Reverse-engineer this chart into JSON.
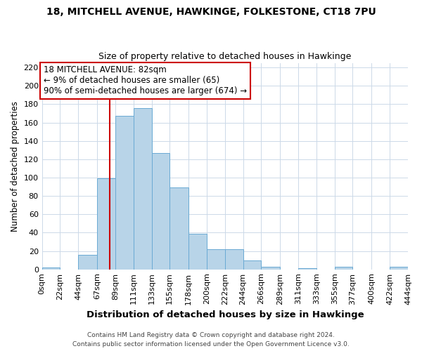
{
  "title": "18, MITCHELL AVENUE, HAWKINGE, FOLKESTONE, CT18 7PU",
  "subtitle": "Size of property relative to detached houses in Hawkinge",
  "xlabel": "Distribution of detached houses by size in Hawkinge",
  "ylabel": "Number of detached properties",
  "bin_edges": [
    0,
    22,
    44,
    67,
    89,
    111,
    133,
    155,
    178,
    200,
    222,
    244,
    266,
    289,
    311,
    333,
    355,
    377,
    400,
    422,
    444
  ],
  "bin_labels": [
    "0sqm",
    "22sqm",
    "44sqm",
    "67sqm",
    "89sqm",
    "111sqm",
    "133sqm",
    "155sqm",
    "178sqm",
    "200sqm",
    "222sqm",
    "244sqm",
    "266sqm",
    "289sqm",
    "311sqm",
    "333sqm",
    "355sqm",
    "377sqm",
    "400sqm",
    "422sqm",
    "444sqm"
  ],
  "bar_heights": [
    2,
    0,
    16,
    99,
    167,
    176,
    127,
    89,
    39,
    22,
    22,
    10,
    3,
    0,
    1,
    0,
    3,
    0,
    0,
    3
  ],
  "bar_color": "#b8d4e8",
  "bar_edge_color": "#6aaad4",
  "property_line_x": 82,
  "ylim": [
    0,
    225
  ],
  "yticks": [
    0,
    20,
    40,
    60,
    80,
    100,
    120,
    140,
    160,
    180,
    200,
    220
  ],
  "annotation_title": "18 MITCHELL AVENUE: 82sqm",
  "annotation_line1": "← 9% of detached houses are smaller (65)",
  "annotation_line2": "90% of semi-detached houses are larger (674) →",
  "annotation_box_color": "#ffffff",
  "annotation_box_edge": "#cc0000",
  "footer_line1": "Contains HM Land Registry data © Crown copyright and database right 2024.",
  "footer_line2": "Contains public sector information licensed under the Open Government Licence v3.0.",
  "background_color": "#ffffff",
  "grid_color": "#ccd9e8",
  "title_fontsize": 10,
  "subtitle_fontsize": 9,
  "annotation_fontsize": 8.5,
  "ylabel_fontsize": 8.5,
  "xlabel_fontsize": 9.5,
  "tick_fontsize": 8,
  "footer_fontsize": 6.5
}
